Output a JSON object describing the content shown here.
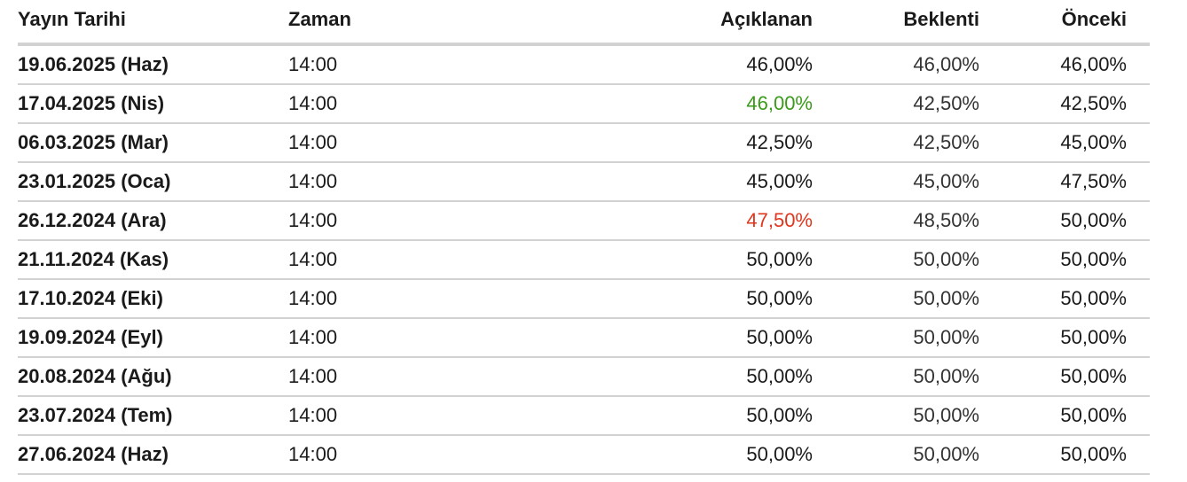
{
  "headers": {
    "date": "Yayın Tarihi",
    "time": "Zaman",
    "actual": "Açıklanan",
    "forecast": "Beklenti",
    "previous": "Önceki"
  },
  "rows": [
    {
      "date": "19.06.2025 (Haz)",
      "time": "14:00",
      "actual": "46,00%",
      "forecast": "46,00%",
      "previous": "46,00%",
      "trend": "none"
    },
    {
      "date": "17.04.2025 (Nis)",
      "time": "14:00",
      "actual": "46,00%",
      "forecast": "42,50%",
      "previous": "42,50%",
      "trend": "up"
    },
    {
      "date": "06.03.2025 (Mar)",
      "time": "14:00",
      "actual": "42,50%",
      "forecast": "42,50%",
      "previous": "45,00%",
      "trend": "none"
    },
    {
      "date": "23.01.2025 (Oca)",
      "time": "14:00",
      "actual": "45,00%",
      "forecast": "45,00%",
      "previous": "47,50%",
      "trend": "none"
    },
    {
      "date": "26.12.2024 (Ara)",
      "time": "14:00",
      "actual": "47,50%",
      "forecast": "48,50%",
      "previous": "50,00%",
      "trend": "down"
    },
    {
      "date": "21.11.2024 (Kas)",
      "time": "14:00",
      "actual": "50,00%",
      "forecast": "50,00%",
      "previous": "50,00%",
      "trend": "none"
    },
    {
      "date": "17.10.2024 (Eki)",
      "time": "14:00",
      "actual": "50,00%",
      "forecast": "50,00%",
      "previous": "50,00%",
      "trend": "none"
    },
    {
      "date": "19.09.2024 (Eyl)",
      "time": "14:00",
      "actual": "50,00%",
      "forecast": "50,00%",
      "previous": "50,00%",
      "trend": "none"
    },
    {
      "date": "20.08.2024 (Ağu)",
      "time": "14:00",
      "actual": "50,00%",
      "forecast": "50,00%",
      "previous": "50,00%",
      "trend": "none"
    },
    {
      "date": "23.07.2024 (Tem)",
      "time": "14:00",
      "actual": "50,00%",
      "forecast": "50,00%",
      "previous": "50,00%",
      "trend": "none"
    },
    {
      "date": "27.06.2024 (Haz)",
      "time": "14:00",
      "actual": "50,00%",
      "forecast": "50,00%",
      "previous": "50,00%",
      "trend": "none"
    }
  ],
  "colors": {
    "up": "#3a9a1a",
    "down": "#e0361d",
    "border": "#d2d2d2"
  }
}
